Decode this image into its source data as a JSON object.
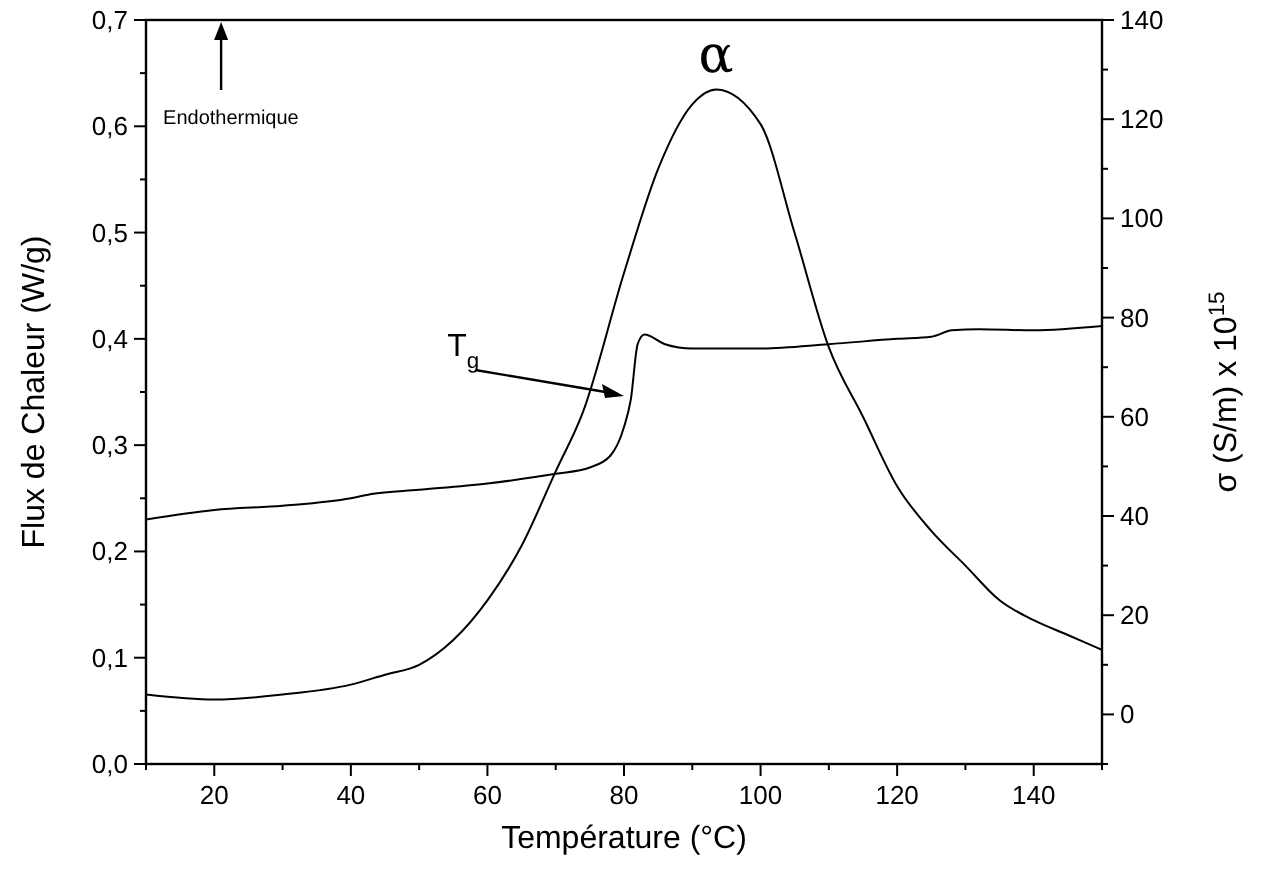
{
  "chart_data": {
    "type": "line",
    "xlabel": "Température (°C)",
    "ylabel": "Flux de Chaleur (W/g)",
    "y2label": "σ (S/m) x 10$^{15}$",
    "annotations": [
      "α",
      "T$_{g}$",
      "Endothermique"
    ],
    "xlim": [
      10,
      150
    ],
    "xticks": [
      {
        "value": 10,
        "label": null
      },
      20,
      {
        "value": 30,
        "label": null
      },
      40,
      {
        "value": 50,
        "label": null
      },
      60,
      {
        "value": 70,
        "label": null
      },
      80,
      {
        "value": 90,
        "label": null
      },
      100,
      {
        "value": 110,
        "label": null
      },
      120,
      {
        "value": 130,
        "label": null
      },
      140,
      {
        "value": 150,
        "label": null
      }
    ],
    "ylim": [
      0,
      0.7
    ],
    "yticks": [
      {
        "value": 0,
        "label": "0,0"
      },
      {
        "value": 0.05,
        "label": null
      },
      {
        "value": 0.1,
        "label": "0,1"
      },
      {
        "value": 0.15,
        "label": null
      },
      {
        "value": 0.2,
        "label": "0,2"
      },
      {
        "value": 0.25,
        "label": null
      },
      {
        "value": 0.3,
        "label": "0,3"
      },
      {
        "value": 0.35,
        "label": null
      },
      {
        "value": 0.4,
        "label": "0,4"
      },
      {
        "value": 0.45,
        "label": null
      },
      {
        "value": 0.5,
        "label": "0,5"
      },
      {
        "value": 0.55,
        "label": null
      },
      {
        "value": 0.6,
        "label": "0,6"
      },
      {
        "value": 0.65,
        "label": null
      },
      {
        "value": 0.7,
        "label": "0,7"
      }
    ],
    "y2lim": [
      -10,
      140
    ],
    "y2ticks": [
      {
        "value": -10,
        "label": null
      },
      0,
      {
        "value": 10,
        "label": null
      },
      20,
      {
        "value": 30,
        "label": null
      },
      40,
      {
        "value": 50,
        "label": null
      },
      60,
      {
        "value": 70,
        "label": null
      },
      80,
      {
        "value": 90,
        "label": null
      },
      100,
      {
        "value": 110,
        "label": null
      },
      120,
      {
        "value": 130,
        "label": null
      },
      140
    ],
    "grid": false,
    "marker": "none",
    "line_style": "solid",
    "series": [
      {
        "color": "#000000",
        "x": [
          10,
          20,
          30,
          40,
          43,
          50,
          60,
          70,
          75,
          78,
          80,
          81,
          82,
          83,
          86,
          90,
          100,
          110,
          120,
          125,
          128,
          132,
          140,
          150
        ],
        "values": [
          0.23,
          0.239,
          0.243,
          0.25,
          0.254,
          0.258,
          0.264,
          0.273,
          0.279,
          0.29,
          0.317,
          0.343,
          0.395,
          0.404,
          0.395,
          0.391,
          0.391,
          0.395,
          0.4,
          0.402,
          0.408,
          0.409,
          0.408,
          0.412
        ]
      },
      {
        "color": "#000000",
        "axis": "y2",
        "x": [
          10,
          20,
          30,
          40,
          45,
          50,
          55,
          60,
          65,
          70,
          74,
          80,
          85,
          90,
          93.5,
          100,
          105,
          110,
          115,
          120,
          125,
          130,
          135,
          140,
          145,
          150
        ],
        "values": [
          4,
          3,
          4,
          6,
          8,
          10,
          15,
          23,
          34,
          49,
          61,
          89,
          110,
          123,
          126,
          119,
          97,
          74,
          60,
          46,
          37,
          30,
          23,
          19,
          16,
          13
        ]
      }
    ]
  }
}
